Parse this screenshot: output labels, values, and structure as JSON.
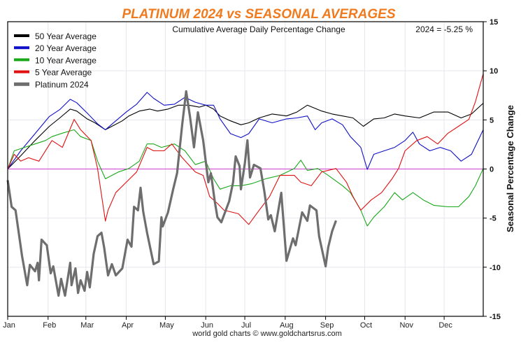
{
  "chart_data": {
    "type": "line",
    "title": "PLATINUM 2024 vs SEASONAL AVERAGES",
    "subtitle": "Cumulative Average Daily Percentage Change",
    "annotation": "2024 = -5.25 %",
    "ylabel": "Seasonal Percentage Change",
    "xlabel": "",
    "credit": "world gold charts © www.goldchartsrus.com",
    "x_unit": "day of year",
    "xlim": [
      1,
      366
    ],
    "ylim": [
      -15,
      15
    ],
    "y_ticks": [
      "15",
      "10",
      "5",
      "0",
      "-5",
      "-10",
      "-15"
    ],
    "y_tick_values": [
      15,
      10,
      5,
      0,
      -5,
      -10,
      -15
    ],
    "x_tick_labels": [
      "Jan",
      "Feb",
      "Mar",
      "Apr",
      "May",
      "Jun",
      "Jul",
      "Aug",
      "Sep",
      "Oct",
      "Nov",
      "Dec"
    ],
    "x_tick_days": [
      1,
      32,
      61,
      92,
      122,
      153,
      183,
      214,
      245,
      275,
      306,
      336
    ],
    "grid": true,
    "zero_line_color": "#d040d0",
    "legend_position": "top-left",
    "series": [
      {
        "name": "50 Year Average",
        "color": "#000000",
        "points": [
          [
            1,
            0
          ],
          [
            11,
            1.35
          ],
          [
            22,
            2.9
          ],
          [
            33,
            4.35
          ],
          [
            41,
            5.2
          ],
          [
            49,
            6.1
          ],
          [
            54,
            5.9
          ],
          [
            62,
            5.1
          ],
          [
            68,
            4.7
          ],
          [
            76,
            4.0
          ],
          [
            81,
            4.35
          ],
          [
            89,
            4.9
          ],
          [
            94,
            5.4
          ],
          [
            102,
            5.9
          ],
          [
            110,
            6.1
          ],
          [
            116,
            5.9
          ],
          [
            124,
            6.1
          ],
          [
            132,
            6.5
          ],
          [
            140,
            6.5
          ],
          [
            148,
            6.3
          ],
          [
            153,
            6.5
          ],
          [
            159,
            6.1
          ],
          [
            164,
            5.4
          ],
          [
            172,
            4.9
          ],
          [
            180,
            4.5
          ],
          [
            186,
            4.7
          ],
          [
            194,
            5.2
          ],
          [
            204,
            5.6
          ],
          [
            215,
            5.4
          ],
          [
            223,
            5.8
          ],
          [
            231,
            6.5
          ],
          [
            242,
            5.9
          ],
          [
            250,
            5.6
          ],
          [
            258,
            5.4
          ],
          [
            266,
            5.2
          ],
          [
            274,
            4.35
          ],
          [
            282,
            5.1
          ],
          [
            290,
            5.2
          ],
          [
            298,
            5.6
          ],
          [
            306,
            5.4
          ],
          [
            317,
            5.2
          ],
          [
            328,
            5.8
          ],
          [
            339,
            5.8
          ],
          [
            349,
            5.2
          ],
          [
            357,
            5.6
          ],
          [
            366,
            6.7
          ]
        ]
      },
      {
        "name": "20 Year Average",
        "color": "#1010c8",
        "points": [
          [
            1,
            0
          ],
          [
            11,
            1.85
          ],
          [
            22,
            3.6
          ],
          [
            33,
            5.35
          ],
          [
            41,
            6.05
          ],
          [
            49,
            7.1
          ],
          [
            54,
            6.75
          ],
          [
            62,
            5.7
          ],
          [
            70,
            4.6
          ],
          [
            76,
            4.0
          ],
          [
            84,
            4.9
          ],
          [
            92,
            5.8
          ],
          [
            100,
            6.6
          ],
          [
            108,
            7.8
          ],
          [
            113,
            7.2
          ],
          [
            121,
            6.5
          ],
          [
            129,
            6.6
          ],
          [
            137,
            7.3
          ],
          [
            145,
            6.8
          ],
          [
            153,
            6.5
          ],
          [
            159,
            6.5
          ],
          [
            164,
            5.1
          ],
          [
            172,
            3.6
          ],
          [
            180,
            3.2
          ],
          [
            186,
            3.6
          ],
          [
            194,
            5.1
          ],
          [
            204,
            4.7
          ],
          [
            215,
            5.1
          ],
          [
            223,
            5.2
          ],
          [
            231,
            5.4
          ],
          [
            237,
            4.0
          ],
          [
            242,
            4.7
          ],
          [
            250,
            5.1
          ],
          [
            258,
            4.5
          ],
          [
            264,
            3.3
          ],
          [
            272,
            2.2
          ],
          [
            277,
            -0.05
          ],
          [
            282,
            1.5
          ],
          [
            290,
            1.85
          ],
          [
            298,
            2.2
          ],
          [
            306,
            2.9
          ],
          [
            312,
            3.75
          ],
          [
            317,
            2.55
          ],
          [
            325,
            1.85
          ],
          [
            333,
            2.2
          ],
          [
            341,
            1.85
          ],
          [
            349,
            0.8
          ],
          [
            357,
            1.5
          ],
          [
            366,
            4.0
          ]
        ]
      },
      {
        "name": "10 Year Average",
        "color": "#1aa81a",
        "points": [
          [
            1,
            0
          ],
          [
            6,
            1.85
          ],
          [
            14,
            2.2
          ],
          [
            22,
            2.55
          ],
          [
            30,
            2.9
          ],
          [
            35,
            3.3
          ],
          [
            43,
            3.65
          ],
          [
            52,
            4.0
          ],
          [
            57,
            3.3
          ],
          [
            65,
            2.9
          ],
          [
            70,
            0.8
          ],
          [
            76,
            -1.0
          ],
          [
            81,
            -0.65
          ],
          [
            86,
            -0.3
          ],
          [
            94,
            0.05
          ],
          [
            102,
            0.8
          ],
          [
            108,
            2.55
          ],
          [
            113,
            2.55
          ],
          [
            119,
            2.2
          ],
          [
            129,
            2.55
          ],
          [
            137,
            1.85
          ],
          [
            145,
            0.45
          ],
          [
            153,
            0.8
          ],
          [
            159,
            -1.0
          ],
          [
            164,
            -2.05
          ],
          [
            172,
            -1.7
          ],
          [
            180,
            -1.7
          ],
          [
            188,
            -1.5
          ],
          [
            199,
            -1.0
          ],
          [
            210,
            -0.65
          ],
          [
            221,
            0.05
          ],
          [
            226,
            0.9
          ],
          [
            231,
            -0.15
          ],
          [
            239,
            0.05
          ],
          [
            247,
            -0.65
          ],
          [
            258,
            -1.7
          ],
          [
            264,
            -2.4
          ],
          [
            272,
            -4.2
          ],
          [
            277,
            -5.8
          ],
          [
            282,
            -4.9
          ],
          [
            290,
            -3.85
          ],
          [
            298,
            -2.4
          ],
          [
            304,
            -3.15
          ],
          [
            312,
            -2.4
          ],
          [
            320,
            -3.15
          ],
          [
            328,
            -3.7
          ],
          [
            339,
            -3.85
          ],
          [
            347,
            -3.85
          ],
          [
            355,
            -2.8
          ],
          [
            360,
            -1.7
          ],
          [
            366,
            0.05
          ]
        ]
      },
      {
        "name": "5 Year Average",
        "color": "#e01010",
        "points": [
          [
            1,
            0
          ],
          [
            6,
            1.5
          ],
          [
            11,
            0.8
          ],
          [
            17,
            1.15
          ],
          [
            25,
            0.8
          ],
          [
            35,
            2.9
          ],
          [
            43,
            2.2
          ],
          [
            52,
            5.05
          ],
          [
            57,
            4.0
          ],
          [
            65,
            2.9
          ],
          [
            70,
            0.05
          ],
          [
            76,
            -5.3
          ],
          [
            78,
            -4.2
          ],
          [
            84,
            -2.4
          ],
          [
            92,
            -1.35
          ],
          [
            100,
            -0.3
          ],
          [
            108,
            2.2
          ],
          [
            113,
            1.85
          ],
          [
            121,
            1.85
          ],
          [
            127,
            2.55
          ],
          [
            135,
            1.15
          ],
          [
            145,
            -0.3
          ],
          [
            151,
            -0.65
          ],
          [
            156,
            -2.8
          ],
          [
            162,
            -3.5
          ],
          [
            167,
            -4.2
          ],
          [
            178,
            -4.55
          ],
          [
            186,
            -5.65
          ],
          [
            194,
            -4.2
          ],
          [
            202,
            -2.8
          ],
          [
            210,
            -0.65
          ],
          [
            221,
            -0.65
          ],
          [
            226,
            -1.35
          ],
          [
            234,
            -1.7
          ],
          [
            242,
            -0.3
          ],
          [
            253,
            0.05
          ],
          [
            261,
            -1.35
          ],
          [
            266,
            -2.8
          ],
          [
            272,
            -4.2
          ],
          [
            280,
            -3.15
          ],
          [
            288,
            -2.4
          ],
          [
            296,
            -1.0
          ],
          [
            301,
            0.05
          ],
          [
            306,
            1.85
          ],
          [
            315,
            2.9
          ],
          [
            323,
            3.3
          ],
          [
            331,
            2.55
          ],
          [
            339,
            3.65
          ],
          [
            347,
            4.35
          ],
          [
            355,
            5.05
          ],
          [
            360,
            6.85
          ],
          [
            366,
            9.7
          ]
        ]
      },
      {
        "name": "Platinum 2024",
        "color": "#6e6e6e",
        "points": [
          [
            1,
            -1.14
          ],
          [
            4,
            -3.85
          ],
          [
            7,
            -4.2
          ],
          [
            12,
            -8.84
          ],
          [
            16,
            -11.83
          ],
          [
            18,
            -9.76
          ],
          [
            22,
            -10.41
          ],
          [
            24,
            -9.55
          ],
          [
            25,
            -11.33
          ],
          [
            27,
            -7.2
          ],
          [
            31,
            -7.77
          ],
          [
            34,
            -10.62
          ],
          [
            36,
            -9.91
          ],
          [
            40,
            -12.9
          ],
          [
            42,
            -11.19
          ],
          [
            45,
            -12.9
          ],
          [
            49,
            -9.55
          ],
          [
            50,
            -11.83
          ],
          [
            53,
            -10.12
          ],
          [
            55,
            -12.62
          ],
          [
            57,
            -11.33
          ],
          [
            60,
            -12.4
          ],
          [
            62,
            -10.48
          ],
          [
            64,
            -12.05
          ],
          [
            67,
            -8.62
          ],
          [
            70,
            -6.84
          ],
          [
            73,
            -6.49
          ],
          [
            75,
            -7.98
          ],
          [
            78,
            -10.83
          ],
          [
            81,
            -9.69
          ],
          [
            84,
            -10.83
          ],
          [
            89,
            -10.12
          ],
          [
            93,
            -7.2
          ],
          [
            96,
            -7.91
          ],
          [
            98,
            -3.85
          ],
          [
            101,
            -4.21
          ],
          [
            103,
            -1.92
          ],
          [
            105,
            -4.35
          ],
          [
            108,
            -6.49
          ],
          [
            113,
            -9.69
          ],
          [
            117,
            -9.41
          ],
          [
            119,
            -4.92
          ],
          [
            120,
            -5.84
          ],
          [
            124,
            -4.42
          ],
          [
            128,
            -2.07
          ],
          [
            131,
            -0.43
          ],
          [
            135,
            4.56
          ],
          [
            138,
            7.91
          ],
          [
            141,
            5.27
          ],
          [
            144,
            2.21
          ],
          [
            147,
            5.77
          ],
          [
            151,
            2.92
          ],
          [
            155,
            -1.35
          ],
          [
            157,
            -0.43
          ],
          [
            160,
            -3.35
          ],
          [
            162,
            -4.92
          ],
          [
            165,
            -5.42
          ],
          [
            171,
            -3.28
          ],
          [
            174,
            -1.35
          ],
          [
            176,
            1.28
          ],
          [
            179,
            0.29
          ],
          [
            180,
            -2.07
          ],
          [
            183,
            0.57
          ],
          [
            185,
            2.92
          ],
          [
            187,
            -0.86
          ],
          [
            190,
            0.43
          ],
          [
            195,
            0.07
          ],
          [
            198,
            -2.28
          ],
          [
            201,
            -5.13
          ],
          [
            203,
            -4.7
          ],
          [
            206,
            -6.34
          ],
          [
            211,
            -2.42
          ],
          [
            215,
            -9.34
          ],
          [
            220,
            -7.06
          ],
          [
            222,
            -7.77
          ],
          [
            227,
            -4.42
          ],
          [
            231,
            -5.27
          ],
          [
            233,
            -3.71
          ],
          [
            238,
            -4.21
          ],
          [
            240,
            -6.84
          ],
          [
            245,
            -9.91
          ],
          [
            247,
            -7.98
          ],
          [
            250,
            -6.34
          ],
          [
            253,
            -5.25
          ]
        ]
      }
    ]
  }
}
